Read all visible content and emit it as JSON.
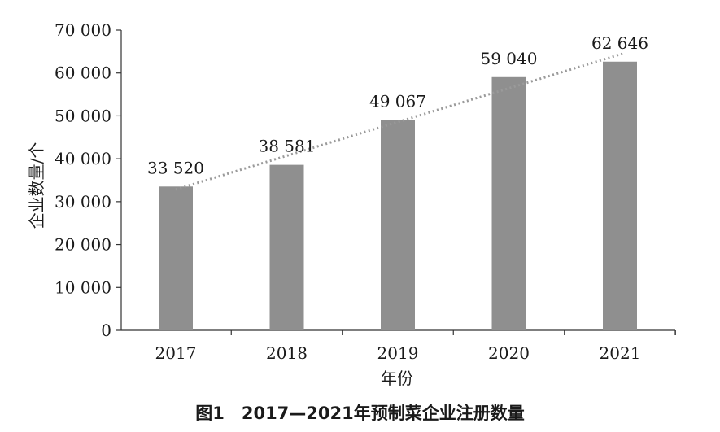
{
  "chart_data": {
    "type": "bar",
    "categories": [
      "2017",
      "2018",
      "2019",
      "2020",
      "2021"
    ],
    "values": [
      33520,
      38581,
      49067,
      59040,
      62646
    ],
    "data_labels": [
      "33 520",
      "38 581",
      "49 067",
      "59 040",
      "62 646"
    ],
    "title": "图1　2017—2021年预制菜企业注册数量",
    "xlabel": "年份",
    "ylabel": "企业数量/个",
    "ylim": [
      0,
      70000
    ],
    "yticks": [
      0,
      10000,
      20000,
      30000,
      40000,
      50000,
      60000,
      70000
    ],
    "ytick_labels": [
      "0",
      "10 000",
      "20 000",
      "30 000",
      "40 000",
      "50 000",
      "60 000",
      "70 000"
    ],
    "trendline": "linear, dotted",
    "grid": false,
    "legend": "none",
    "colors": {
      "bar": "#8f8f8f",
      "trendline": "#9a9a9a",
      "axis": "#333333"
    }
  }
}
